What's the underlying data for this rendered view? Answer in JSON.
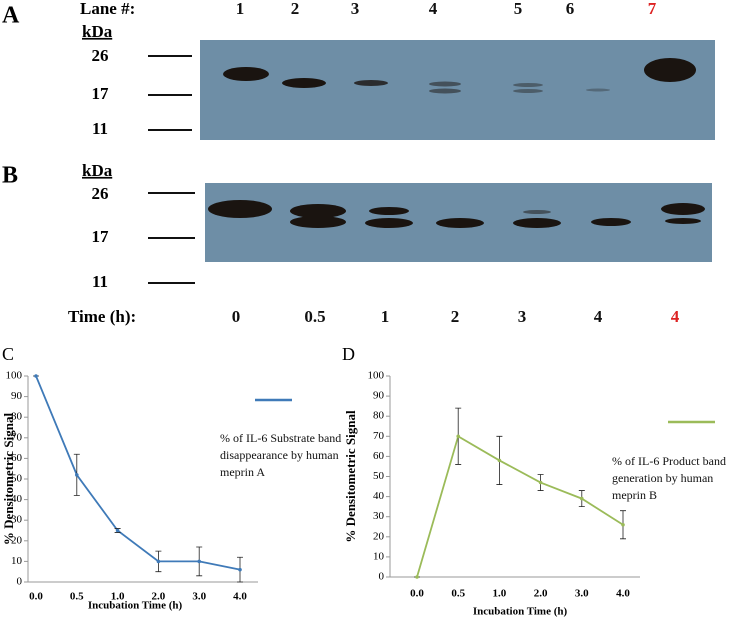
{
  "panels": {
    "A": {
      "label": "A",
      "lane_label": "Lane #:",
      "lanes": [
        "1",
        "2",
        "3",
        "4",
        "5",
        "6",
        "7"
      ],
      "kda_label": "kDa",
      "markers": [
        "26",
        "17",
        "11"
      ]
    },
    "B": {
      "label": "B",
      "kda_label": "kDa",
      "markers": [
        "26",
        "17",
        "11"
      ],
      "time_label": "Time (h):",
      "times": [
        "0",
        "0.5",
        "1",
        "2",
        "3",
        "4",
        "4"
      ]
    }
  },
  "chart_data": [
    {
      "type": "line",
      "panel_label": "C",
      "x_label": "Incubation Time (h)",
      "y_label": "% Densitometric Signal",
      "categories": [
        "0.0",
        "0.5",
        "1.0",
        "2.0",
        "3.0",
        "4.0"
      ],
      "series": [
        {
          "name": "% of IL-6 Substrate band disappearance by human meprin A",
          "color": "#3f7ab8",
          "values": [
            100,
            52,
            25,
            10,
            10,
            6
          ],
          "errors": [
            0,
            10,
            1,
            5,
            7,
            6
          ]
        }
      ],
      "ylim": [
        0,
        100
      ],
      "yticks": [
        0,
        10,
        20,
        30,
        40,
        50,
        60,
        70,
        80,
        90,
        100
      ]
    },
    {
      "type": "line",
      "panel_label": "D",
      "x_label": "Incubation Time (h)",
      "y_label": "% Densitometric Signal",
      "categories": [
        "0.0",
        "0.5",
        "1.0",
        "2.0",
        "3.0",
        "4.0"
      ],
      "series": [
        {
          "name": "% of IL-6 Product band generation by human meprin B",
          "color": "#9bbb59",
          "values": [
            0,
            70,
            58,
            47,
            39,
            26
          ],
          "errors": [
            0,
            14,
            12,
            4,
            4,
            7
          ]
        }
      ],
      "ylim": [
        0,
        100
      ],
      "yticks": [
        0,
        10,
        20,
        30,
        40,
        50,
        60,
        70,
        80,
        90,
        100
      ]
    }
  ]
}
